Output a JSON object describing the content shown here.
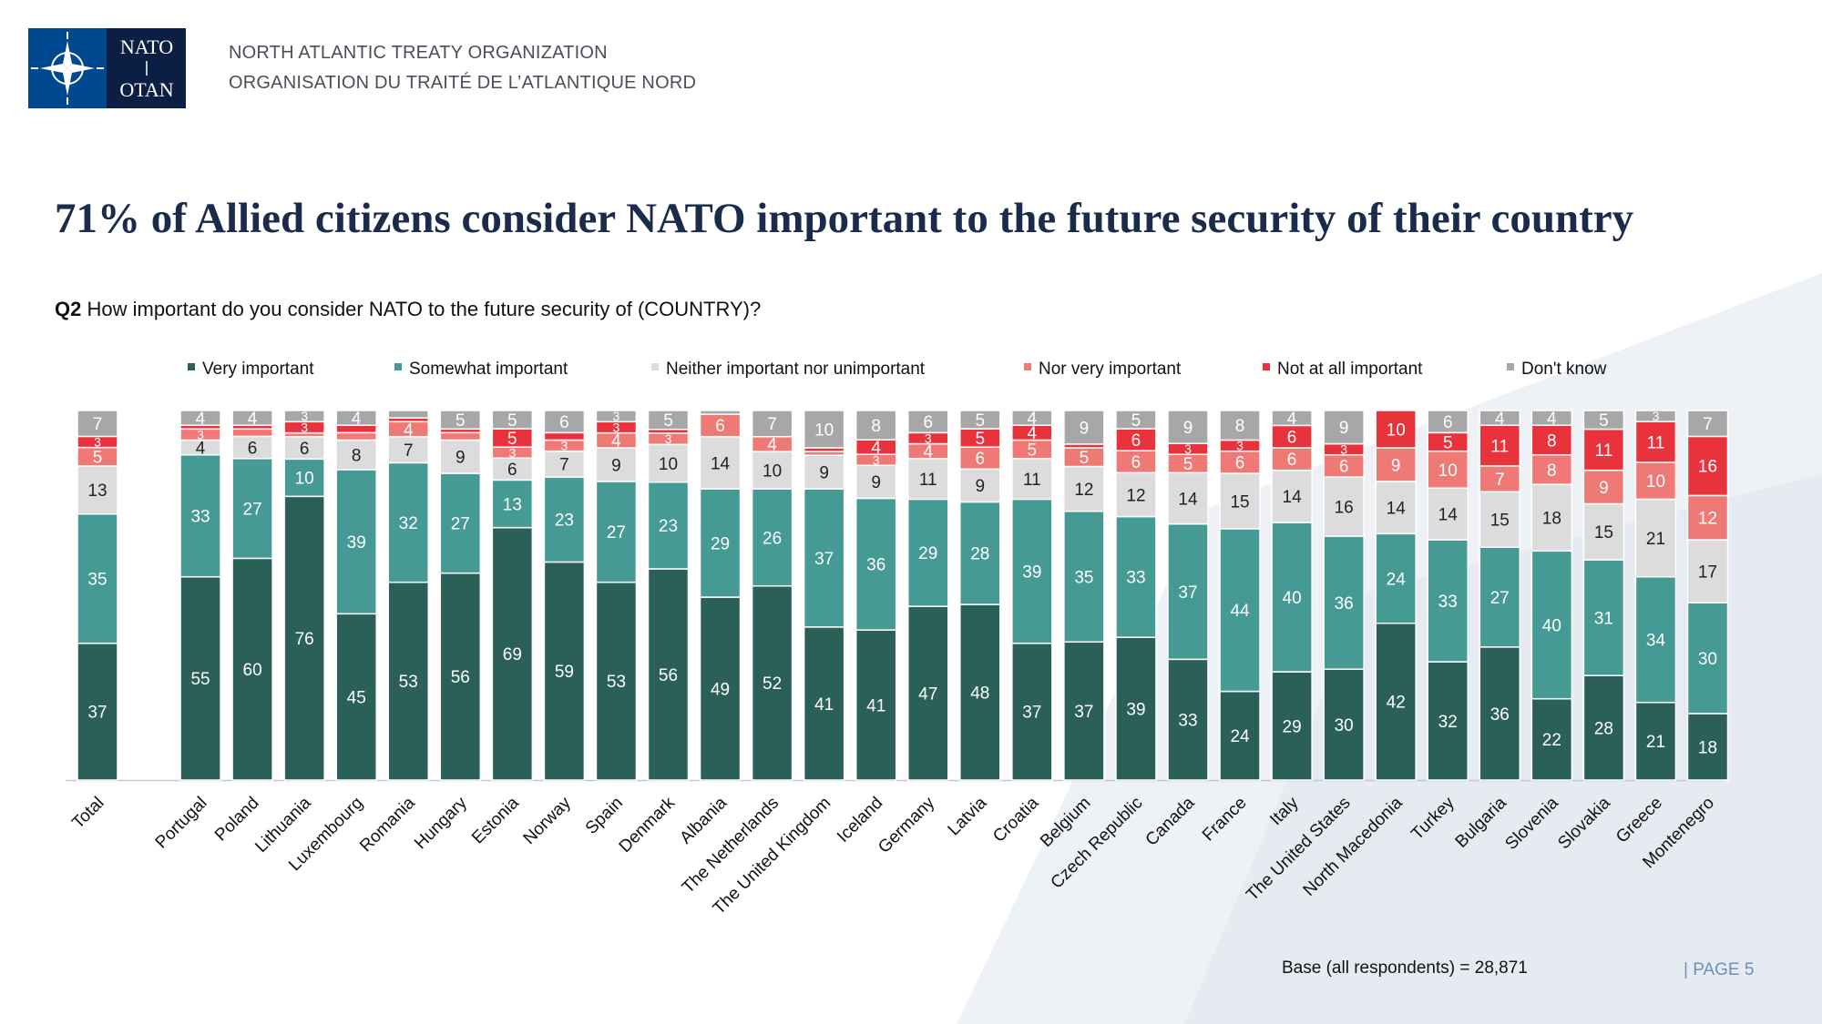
{
  "header": {
    "logo_top": "NATO",
    "logo_bottom": "OTAN",
    "org_en": "NORTH ATLANTIC TREATY ORGANIZATION",
    "org_fr": "ORGANISATION DU TRAITÉ DE L’ATLANTIQUE NORD"
  },
  "title": "71% of Allied citizens consider NATO important to the future security of their country",
  "question": {
    "code": "Q2",
    "text": "How important do you consider NATO to the future security of (COUNTRY)?"
  },
  "footer": {
    "base": "Base (all respondents) = 28,871",
    "page": "|  PAGE 5"
  },
  "colors": {
    "very_important": "#2a6058",
    "somewhat_important": "#459b93",
    "neither": "#dcdcdc",
    "nor_very": "#ef7a75",
    "not_at_all": "#e8333c",
    "dont_know": "#a7a7a7",
    "title": "#1a2b4c",
    "accent": "#6b8fc1"
  },
  "chart_data": {
    "type": "bar",
    "stacked": true,
    "legend_position": "top",
    "categories": [
      "Total",
      "Portugal",
      "Poland",
      "Lithuania",
      "Luxembourg",
      "Romania",
      "Hungary",
      "Estonia",
      "Norway",
      "Spain",
      "Denmark",
      "Albania",
      "The Netherlands",
      "The United Kingdom",
      "Iceland",
      "Germany",
      "Latvia",
      "Croatia",
      "Belgium",
      "Czech Republic",
      "Canada",
      "France",
      "Italy",
      "The United States",
      "North Macedonia",
      "Turkey",
      "Bulgaria",
      "Slovenia",
      "Slovakia",
      "Greece",
      "Montenegro"
    ],
    "series": [
      {
        "name": "Very important",
        "values": [
          37,
          55,
          60,
          76,
          45,
          53,
          56,
          69,
          59,
          53,
          56,
          49,
          52,
          41,
          41,
          47,
          48,
          37,
          37,
          39,
          33,
          24,
          29,
          30,
          42,
          32,
          36,
          22,
          28,
          21,
          18
        ]
      },
      {
        "name": "Somewhat important",
        "values": [
          35,
          33,
          27,
          10,
          39,
          32,
          27,
          13,
          23,
          27,
          23,
          29,
          26,
          37,
          36,
          29,
          28,
          39,
          35,
          33,
          37,
          44,
          40,
          36,
          24,
          33,
          27,
          40,
          31,
          34,
          30
        ]
      },
      {
        "name": "Neither important nor unimportant",
        "values": [
          13,
          4,
          6,
          6,
          8,
          7,
          9,
          6,
          7,
          9,
          10,
          14,
          10,
          9,
          9,
          11,
          9,
          11,
          12,
          12,
          14,
          15,
          14,
          16,
          14,
          14,
          15,
          18,
          15,
          21,
          17
        ]
      },
      {
        "name": "Nor very important",
        "values": [
          5,
          3,
          2,
          1,
          2,
          4,
          2,
          3,
          3,
          4,
          3,
          6,
          4,
          1,
          3,
          4,
          6,
          5,
          5,
          6,
          5,
          6,
          6,
          6,
          9,
          10,
          7,
          8,
          9,
          10,
          12
        ]
      },
      {
        "name": "Not at all important",
        "values": [
          3,
          1,
          1,
          3,
          2,
          1,
          1,
          5,
          2,
          3,
          1,
          0,
          0,
          1,
          4,
          3,
          5,
          4,
          1,
          6,
          3,
          3,
          6,
          3,
          10,
          5,
          11,
          8,
          11,
          11,
          16
        ]
      },
      {
        "name": "Don't know",
        "values": [
          7,
          4,
          4,
          3,
          4,
          2,
          5,
          5,
          6,
          3,
          5,
          1,
          7,
          10,
          8,
          6,
          5,
          4,
          9,
          5,
          9,
          8,
          4,
          9,
          0,
          6,
          4,
          4,
          5,
          3,
          7
        ]
      }
    ],
    "ylim": [
      0,
      100
    ]
  }
}
